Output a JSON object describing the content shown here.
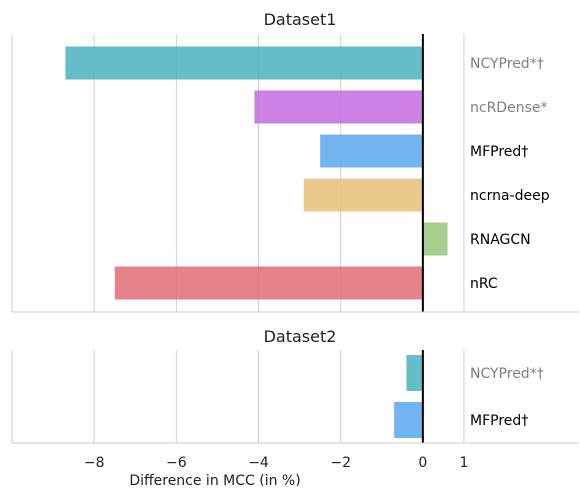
{
  "chart_data": [
    {
      "type": "bar",
      "orientation": "horizontal",
      "title": "Dataset1",
      "categories": [
        "NCYPred*†",
        "ncRDense*",
        "MFPred†",
        "ncrna-deep",
        "RNAGCN",
        "nRC"
      ],
      "values": [
        -8.7,
        -4.1,
        -2.5,
        -2.9,
        0.6,
        -7.5
      ],
      "colors": [
        "#4ab3bd",
        "#c56be0",
        "#5ba8ef",
        "#e6bf78",
        "#98c57a",
        "#e06c75"
      ],
      "label_colors": [
        "#808080",
        "#808080",
        "#000000",
        "#000000",
        "#000000",
        "#000000"
      ],
      "xlim": [
        -10,
        3.8
      ],
      "grid": "x"
    },
    {
      "type": "bar",
      "orientation": "horizontal",
      "title": "Dataset2",
      "categories": [
        "NCYPred*†",
        "MFPred†"
      ],
      "values": [
        -0.4,
        -0.7
      ],
      "colors": [
        "#4ab3bd",
        "#5ba8ef"
      ],
      "label_colors": [
        "#808080",
        "#000000"
      ],
      "xlim": [
        -10,
        3.8
      ],
      "grid": "x"
    }
  ],
  "x_axis": {
    "label": "Difference in MCC (in %)",
    "ticks": [
      {
        "value": -8,
        "label": "−8"
      },
      {
        "value": -6,
        "label": "−6"
      },
      {
        "value": -4,
        "label": "−4"
      },
      {
        "value": -2,
        "label": "−2"
      },
      {
        "value": 0,
        "label": "0"
      },
      {
        "value": 1,
        "label": "1"
      }
    ]
  }
}
